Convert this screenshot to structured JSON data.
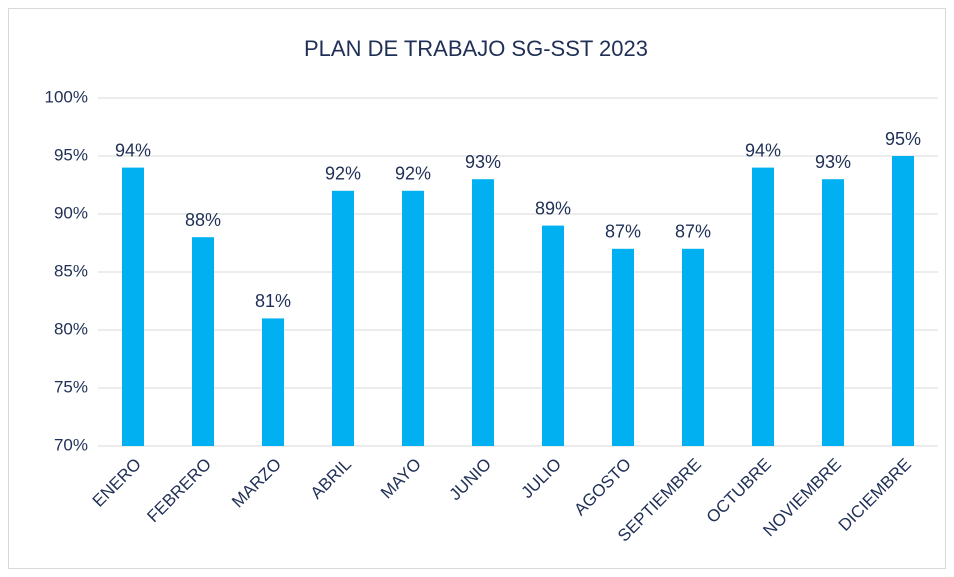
{
  "chart_data": {
    "type": "bar",
    "title": "PLAN DE TRABAJO SG-SST 2023",
    "categories": [
      "ENERO",
      "FEBRERO",
      "MARZO",
      "ABRIL",
      "MAYO",
      "JUNIO",
      "JULIO",
      "AGOSTO",
      "SEPTIEMBRE",
      "OCTUBRE",
      "NOVIEMBRE",
      "DICIEMBRE"
    ],
    "values": [
      94,
      88,
      81,
      92,
      92,
      93,
      89,
      87,
      87,
      94,
      93,
      95
    ],
    "value_labels": [
      "94%",
      "88%",
      "81%",
      "92%",
      "92%",
      "93%",
      "89%",
      "87%",
      "87%",
      "94%",
      "93%",
      "95%"
    ],
    "color": "#00b0f0",
    "ylim": [
      70,
      100
    ],
    "yticks": [
      {
        "value": 70,
        "label": "70%"
      },
      {
        "value": 75,
        "label": "75%"
      },
      {
        "value": 80,
        "label": "80%"
      },
      {
        "value": 85,
        "label": "85%"
      },
      {
        "value": 90,
        "label": "90%"
      },
      {
        "value": 95,
        "label": "95%"
      },
      {
        "value": 100,
        "label": "100%"
      }
    ],
    "grid": true
  }
}
